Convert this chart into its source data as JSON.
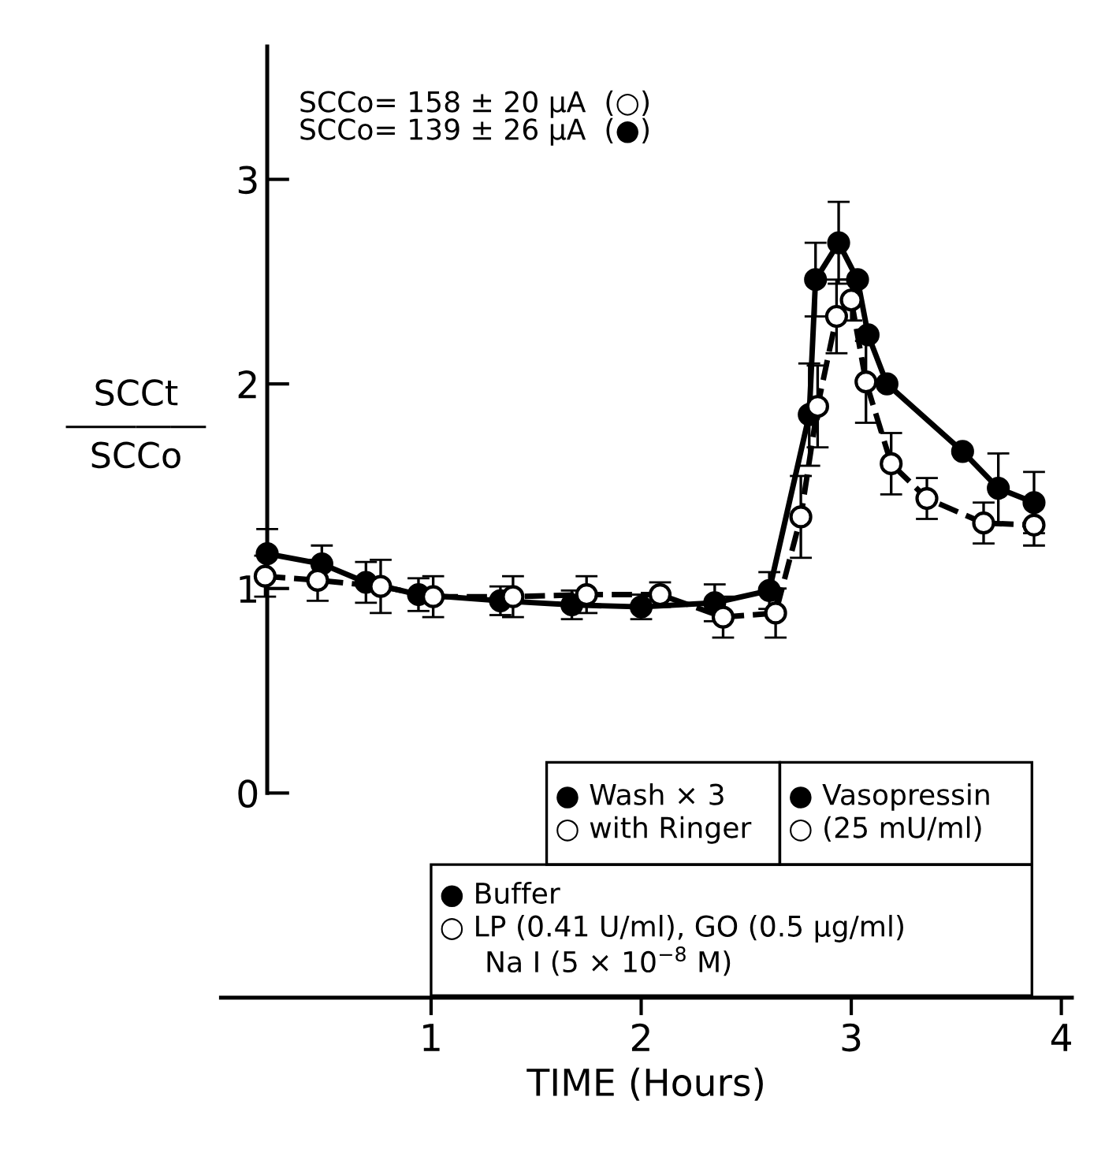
{
  "chart_data": {
    "type": "line",
    "xlabel": "TIME (Hours)",
    "ylabel": "SCCt\n――――\nSCCo",
    "xlim": [
      0,
      4.05
    ],
    "xticks": [
      1,
      2,
      3,
      4
    ],
    "ylim": [
      -1.0,
      3.65
    ],
    "yticks": [
      0,
      1,
      2,
      3
    ],
    "grid": false,
    "legend": false,
    "marker": "circle",
    "series": [
      {
        "color": "#000000",
        "line_style": "solid",
        "x": [
          0.22,
          0.48,
          0.69,
          0.94,
          1.33,
          1.67,
          2.0,
          2.35,
          2.61,
          2.8,
          2.83,
          2.94,
          3.03,
          3.08,
          3.17,
          3.53,
          3.7,
          3.87
        ],
        "values": [
          1.17,
          1.12,
          1.03,
          0.97,
          0.94,
          0.92,
          0.91,
          0.93,
          0.99,
          1.85,
          2.51,
          2.69,
          2.51,
          2.24,
          2.0,
          1.67,
          1.49,
          1.42
        ],
        "errors": [
          0.12,
          0.09,
          0.1,
          0.08,
          0.07,
          0.07,
          0.06,
          0.09,
          0.09,
          0.25,
          0.18,
          0.2,
          null,
          null,
          null,
          null,
          0.17,
          0.15
        ]
      },
      {
        "color": "#000000",
        "line_style": "dashed",
        "x": [
          0.21,
          0.46,
          0.76,
          1.01,
          1.39,
          1.74,
          2.09,
          2.39,
          2.64,
          2.76,
          2.84,
          2.93,
          3.0,
          3.07,
          3.19,
          3.36,
          3.63,
          3.87
        ],
        "values": [
          1.06,
          1.04,
          1.01,
          0.96,
          0.96,
          0.97,
          0.97,
          0.86,
          0.88,
          1.35,
          1.89,
          2.33,
          2.41,
          2.01,
          1.61,
          1.44,
          1.32,
          1.31
        ],
        "errors": [
          0.1,
          0.1,
          0.13,
          0.1,
          0.1,
          0.09,
          0.06,
          0.1,
          0.12,
          0.2,
          0.2,
          0.18,
          0.1,
          0.2,
          0.15,
          0.1,
          0.1,
          0.1
        ]
      }
    ],
    "annotations": [
      "SCCo= 158 ± 20 μA  (○)\nSCCo= 139 ± 26 μA  (●)",
      "● Wash × 3\n○ with Ringer",
      "● Vasopressin\n○ (25 mU/ml)",
      "● Buffer\n○ LP (0.41 U/ml), GO (0.5 μg/ml)\n     Na I (5 × 10$^{−8}$ M)"
    ]
  }
}
